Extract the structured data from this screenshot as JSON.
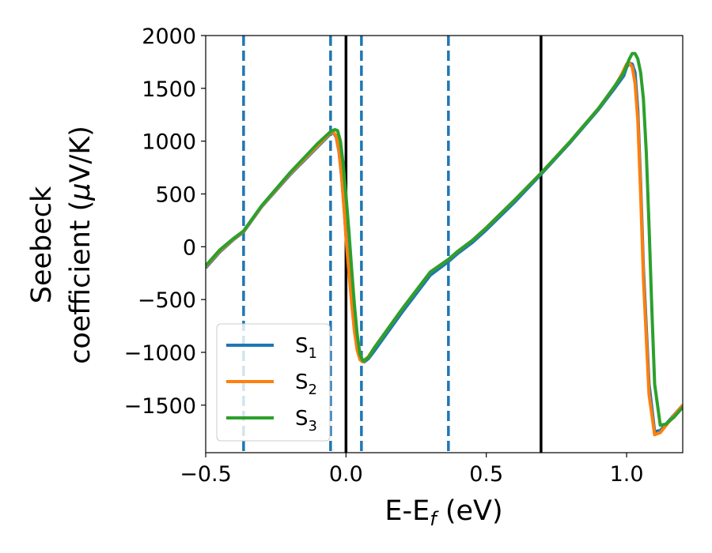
{
  "chart_data": {
    "type": "line",
    "title": "",
    "xlabel": "E-E",
    "xlabel_sub": "f",
    "xlabel_unit": " (eV)",
    "ylabel_line1": "Seebeck",
    "ylabel_line2": "coefficient  (",
    "ylabel_mu": "μ",
    "ylabel_unit_rest": "V/K)",
    "xlim": [
      -0.5,
      1.2
    ],
    "ylim": [
      -1950,
      2000
    ],
    "xticks": [
      {
        "value": -0.5,
        "label": "−0.5"
      },
      {
        "value": 0.0,
        "label": "0.0"
      },
      {
        "value": 0.5,
        "label": "0.5"
      },
      {
        "value": 1.0,
        "label": "1.0"
      }
    ],
    "yticks": [
      {
        "value": 2000,
        "label": "2000"
      },
      {
        "value": 1500,
        "label": "1500"
      },
      {
        "value": 1000,
        "label": "1000"
      },
      {
        "value": 500,
        "label": "500"
      },
      {
        "value": 0,
        "label": "0"
      },
      {
        "value": -500,
        "label": "−500"
      },
      {
        "value": -1000,
        "label": "−1000"
      },
      {
        "value": -1500,
        "label": "−1500"
      }
    ],
    "grid": false,
    "legend_position": "bottom-left",
    "vlines_dashed": [
      -0.365,
      -0.055,
      0.055,
      0.365
    ],
    "vlines_solid": [
      0.0,
      0.695
    ],
    "vline_dashed_color": "#1f77b4",
    "vline_solid_color": "#000000",
    "series": [
      {
        "name": "S",
        "sub": "1",
        "color": "#1f77b4",
        "x": [
          -0.5,
          -0.45,
          -0.4,
          -0.365,
          -0.3,
          -0.2,
          -0.1,
          -0.055,
          -0.045,
          -0.035,
          -0.025,
          -0.015,
          -0.005,
          0.0,
          0.01,
          0.02,
          0.03,
          0.04,
          0.05,
          0.06,
          0.065,
          0.08,
          0.1,
          0.2,
          0.3,
          0.365,
          0.4,
          0.45,
          0.5,
          0.6,
          0.7,
          0.8,
          0.9,
          0.96,
          0.99,
          1.0,
          1.01,
          1.02,
          1.03,
          1.04,
          1.05,
          1.06,
          1.08,
          1.1,
          1.12,
          1.15,
          1.2
        ],
        "y": [
          -200,
          -50,
          70,
          140,
          380,
          680,
          950,
          1070,
          1080,
          1040,
          900,
          650,
          300,
          100,
          -200,
          -500,
          -760,
          -940,
          -1040,
          -1080,
          -1090,
          -1060,
          -990,
          -620,
          -270,
          -140,
          -60,
          40,
          160,
          420,
          700,
          990,
          1300,
          1510,
          1620,
          1700,
          1740,
          1730,
          1650,
          1300,
          600,
          -200,
          -1300,
          -1750,
          -1740,
          -1650,
          -1500
        ]
      },
      {
        "name": "S",
        "sub": "2",
        "color": "#ff7f0e",
        "x": [
          -0.5,
          -0.45,
          -0.4,
          -0.365,
          -0.3,
          -0.2,
          -0.1,
          -0.055,
          -0.045,
          -0.035,
          -0.025,
          -0.015,
          -0.005,
          0.0,
          0.01,
          0.02,
          0.03,
          0.04,
          0.05,
          0.06,
          0.08,
          0.1,
          0.2,
          0.3,
          0.365,
          0.4,
          0.45,
          0.5,
          0.6,
          0.7,
          0.8,
          0.9,
          0.96,
          0.98,
          1.0,
          1.01,
          1.02,
          1.03,
          1.04,
          1.05,
          1.06,
          1.08,
          1.1,
          1.12,
          1.15,
          1.2
        ],
        "y": [
          -190,
          -40,
          75,
          145,
          385,
          690,
          960,
          1080,
          1085,
          1050,
          910,
          650,
          290,
          80,
          -230,
          -530,
          -800,
          -980,
          -1070,
          -1090,
          -1040,
          -960,
          -590,
          -240,
          -120,
          -40,
          60,
          180,
          440,
          710,
          1000,
          1310,
          1530,
          1620,
          1730,
          1740,
          1700,
          1550,
          1200,
          500,
          -300,
          -1400,
          -1780,
          -1760,
          -1660,
          -1500
        ]
      },
      {
        "name": "S",
        "sub": "3",
        "color": "#2ca02c",
        "x": [
          -0.5,
          -0.45,
          -0.4,
          -0.365,
          -0.3,
          -0.2,
          -0.1,
          -0.055,
          -0.04,
          -0.03,
          -0.02,
          -0.01,
          0.0,
          0.01,
          0.02,
          0.03,
          0.04,
          0.05,
          0.06,
          0.08,
          0.1,
          0.2,
          0.3,
          0.365,
          0.4,
          0.45,
          0.5,
          0.6,
          0.7,
          0.8,
          0.9,
          0.96,
          0.99,
          1.01,
          1.02,
          1.03,
          1.04,
          1.05,
          1.06,
          1.07,
          1.08,
          1.09,
          1.1,
          1.12,
          1.14,
          1.17,
          1.2
        ],
        "y": [
          -180,
          -30,
          80,
          150,
          390,
          700,
          980,
          1090,
          1110,
          1100,
          1000,
          780,
          480,
          160,
          -200,
          -550,
          -830,
          -1020,
          -1080,
          -1050,
          -960,
          -590,
          -240,
          -120,
          -40,
          60,
          180,
          440,
          710,
          1000,
          1310,
          1530,
          1650,
          1780,
          1830,
          1830,
          1780,
          1650,
          1400,
          900,
          200,
          -600,
          -1300,
          -1690,
          -1680,
          -1610,
          -1520
        ]
      }
    ]
  }
}
